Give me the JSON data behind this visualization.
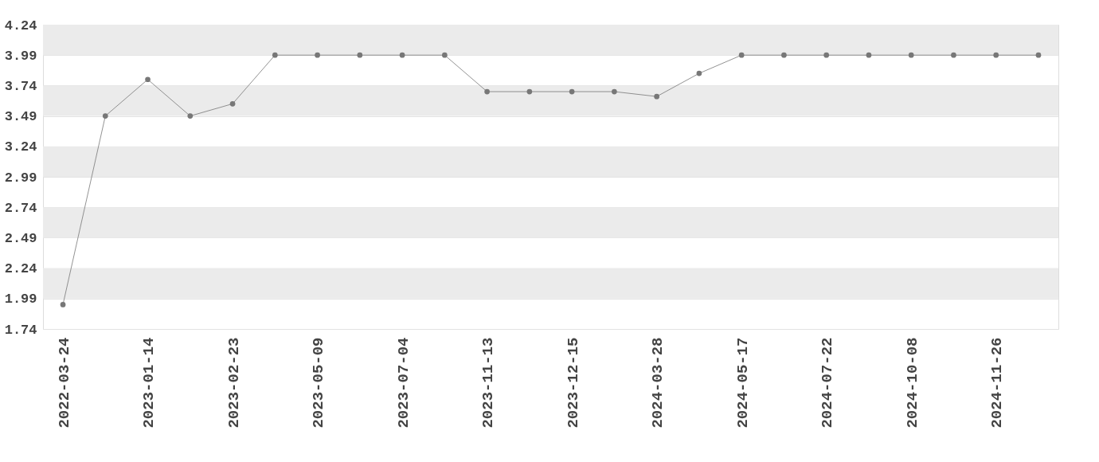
{
  "chart_data": {
    "type": "line",
    "categories": [
      "2022-03-24",
      null,
      "2023-01-14",
      null,
      "2023-02-23",
      null,
      "2023-05-09",
      null,
      "2023-07-04",
      null,
      "2023-11-13",
      null,
      "2023-12-15",
      null,
      "2024-03-28",
      null,
      "2024-05-17",
      null,
      "2024-07-22",
      null,
      "2024-10-08",
      null,
      "2024-11-26",
      null
    ],
    "series": [
      {
        "color": "#777777",
        "values": [
          1.94,
          3.49,
          3.79,
          3.49,
          3.59,
          3.99,
          3.99,
          3.99,
          3.99,
          3.99,
          3.69,
          3.69,
          3.69,
          3.69,
          3.65,
          3.84,
          3.99,
          3.99,
          3.99,
          3.99,
          3.99,
          3.99,
          3.99,
          3.99
        ]
      }
    ],
    "ylim": [
      1.74,
      4.24
    ],
    "yticks": [
      1.74,
      1.99,
      2.24,
      2.49,
      2.74,
      2.99,
      3.24,
      3.49,
      3.74,
      3.99,
      4.24
    ],
    "grid": "y",
    "marker": "circle",
    "line_style": "solid"
  }
}
